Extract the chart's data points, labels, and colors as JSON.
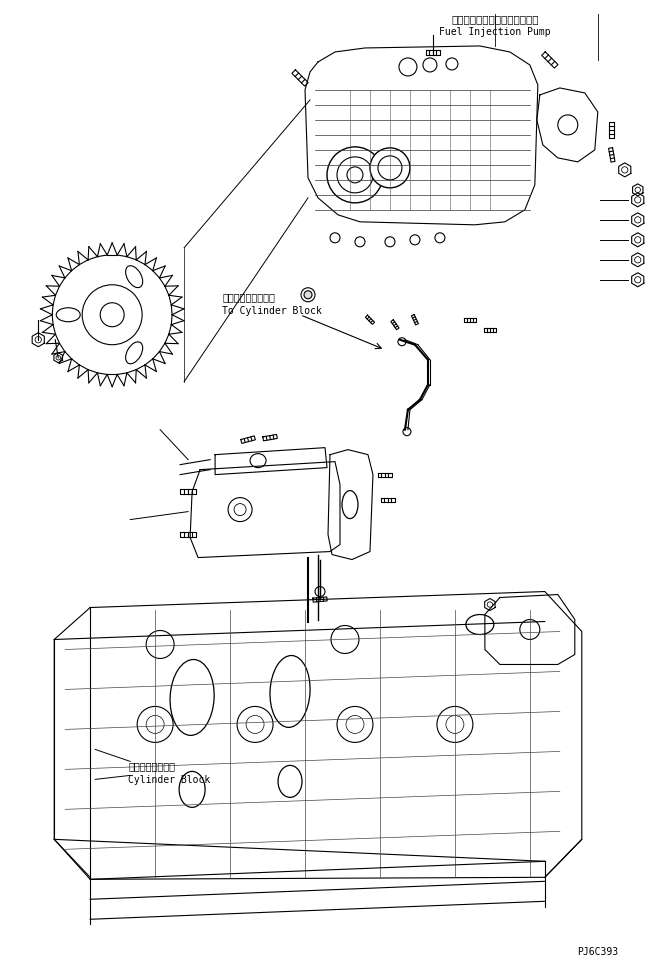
{
  "label_fuel_injection_jp": "フェルインジェクションポンプ",
  "label_fuel_injection_en": "Fuel Injection Pump",
  "label_cylinder_block_jp": "シリンダブロック",
  "label_cylinder_block_en": "Cylinder Block",
  "label_to_cylinder_jp": "シリンダブロックへ",
  "label_to_cylinder_en": "To Cylinder Block",
  "part_number": "PJ6C393",
  "bg": "#ffffff",
  "lc": "#000000"
}
